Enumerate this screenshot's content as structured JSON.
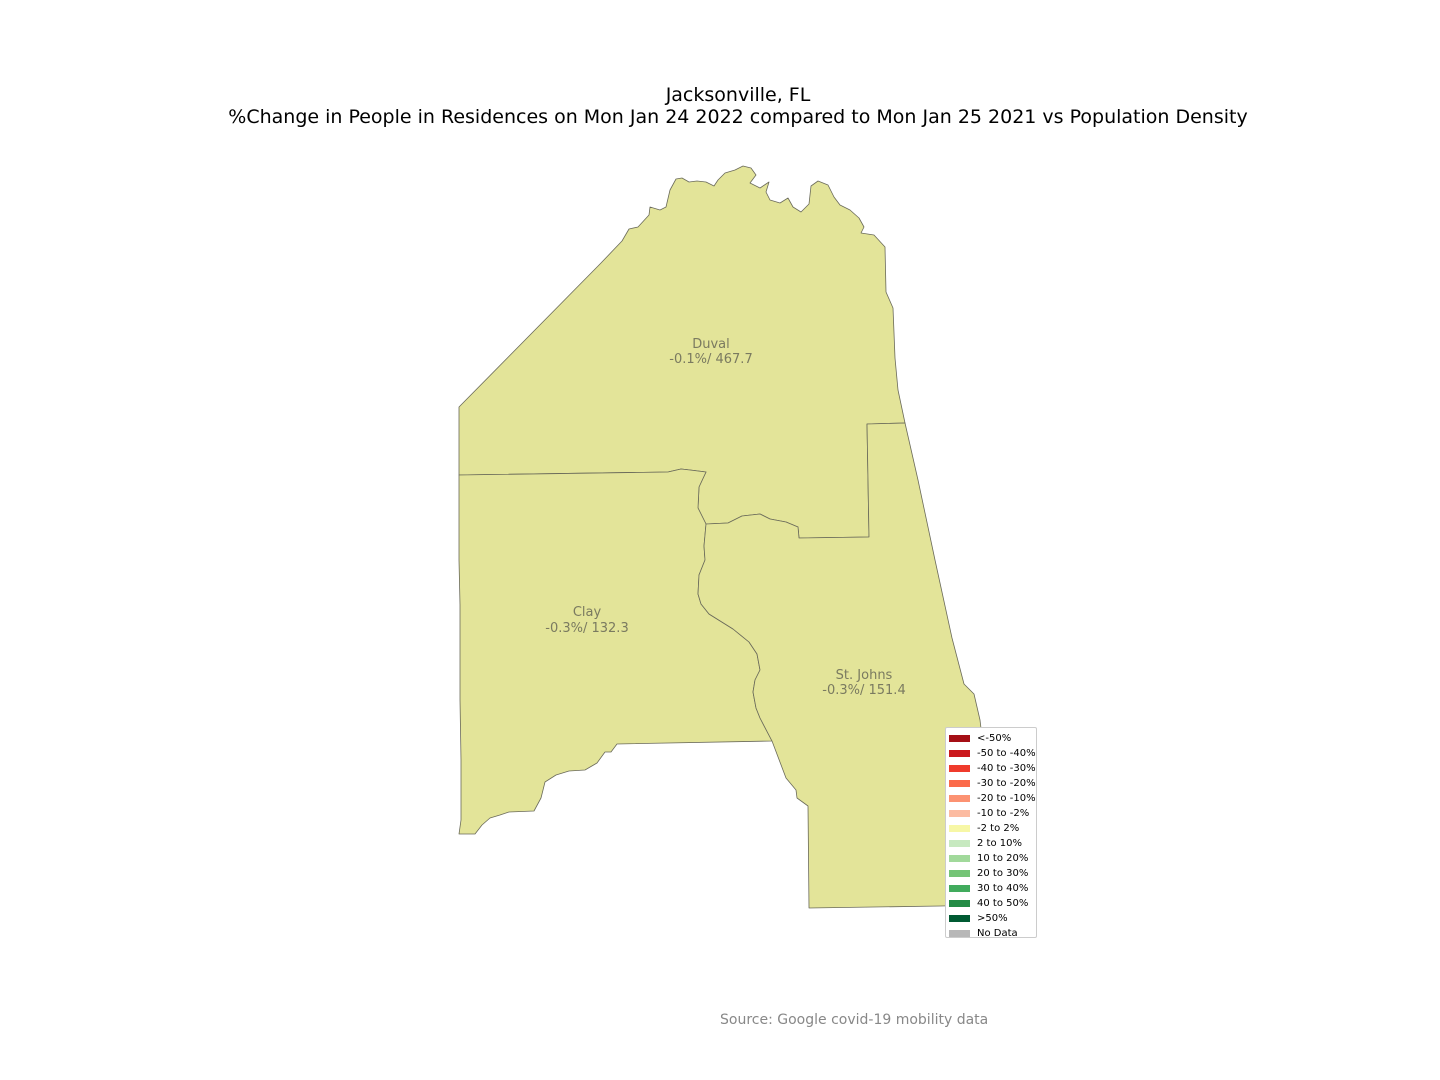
{
  "title": {
    "line1": "Jacksonville, FL",
    "line2": "%Change in People in Residences on Mon Jan 24 2022 compared to Mon Jan 25 2021 vs Population Density"
  },
  "counties": [
    {
      "name": "Duval",
      "value": "-0.1%/ 467.7",
      "fill": "#e3e499"
    },
    {
      "name": "Clay",
      "value": "-0.3%/ 132.3",
      "fill": "#e3e499"
    },
    {
      "name": "St. Johns",
      "value": "-0.3%/ 151.4",
      "fill": "#e3e499"
    }
  ],
  "legend": {
    "items": [
      {
        "label": "<-50%",
        "color": "#a50f15"
      },
      {
        "label": "-50 to -40%",
        "color": "#cb181d"
      },
      {
        "label": "-40 to -30%",
        "color": "#ef3b2c"
      },
      {
        "label": "-30 to -20%",
        "color": "#fb6a4a"
      },
      {
        "label": "-20 to -10%",
        "color": "#fc9272"
      },
      {
        "label": "-10 to -2%",
        "color": "#fcbba1"
      },
      {
        "label": "-2 to 2%",
        "color": "#f7f7a6"
      },
      {
        "label": "2 to 10%",
        "color": "#c7e9c0"
      },
      {
        "label": "10 to 20%",
        "color": "#a1d99b"
      },
      {
        "label": "20 to 30%",
        "color": "#74c476"
      },
      {
        "label": "30 to 40%",
        "color": "#41ab5d"
      },
      {
        "label": "40 to 50%",
        "color": "#238b45"
      },
      {
        "label": ">50%",
        "color": "#005a32"
      },
      {
        "label": "No Data",
        "color": "#b7b7b7"
      }
    ]
  },
  "source": "Source: Google covid-19 mobility data"
}
